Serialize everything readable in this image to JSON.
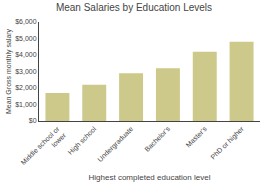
{
  "chart_data": {
    "type": "bar",
    "title": "Mean Salaries by Education Levels",
    "xlabel": "Highest completed education level",
    "ylabel": "Mean Gross monthly salary",
    "categories": [
      "Middle school or\nlower",
      "High school",
      "Undergraduate",
      "Bachelor's",
      "Master's",
      "PhD or higher"
    ],
    "values": [
      1700,
      2200,
      2900,
      3200,
      4200,
      4800
    ],
    "color": "#ccc98a",
    "ylim": [
      0,
      6000
    ],
    "yticks": [
      {
        "value": 0,
        "label": "$0"
      },
      {
        "value": 1000,
        "label": "$1,000"
      },
      {
        "value": 2000,
        "label": "$2,000"
      },
      {
        "value": 3000,
        "label": "$3,000"
      },
      {
        "value": 4000,
        "label": "$4,000"
      },
      {
        "value": 5000,
        "label": "$5,000"
      },
      {
        "value": 6000,
        "label": "$6,000"
      }
    ],
    "grid": false
  }
}
